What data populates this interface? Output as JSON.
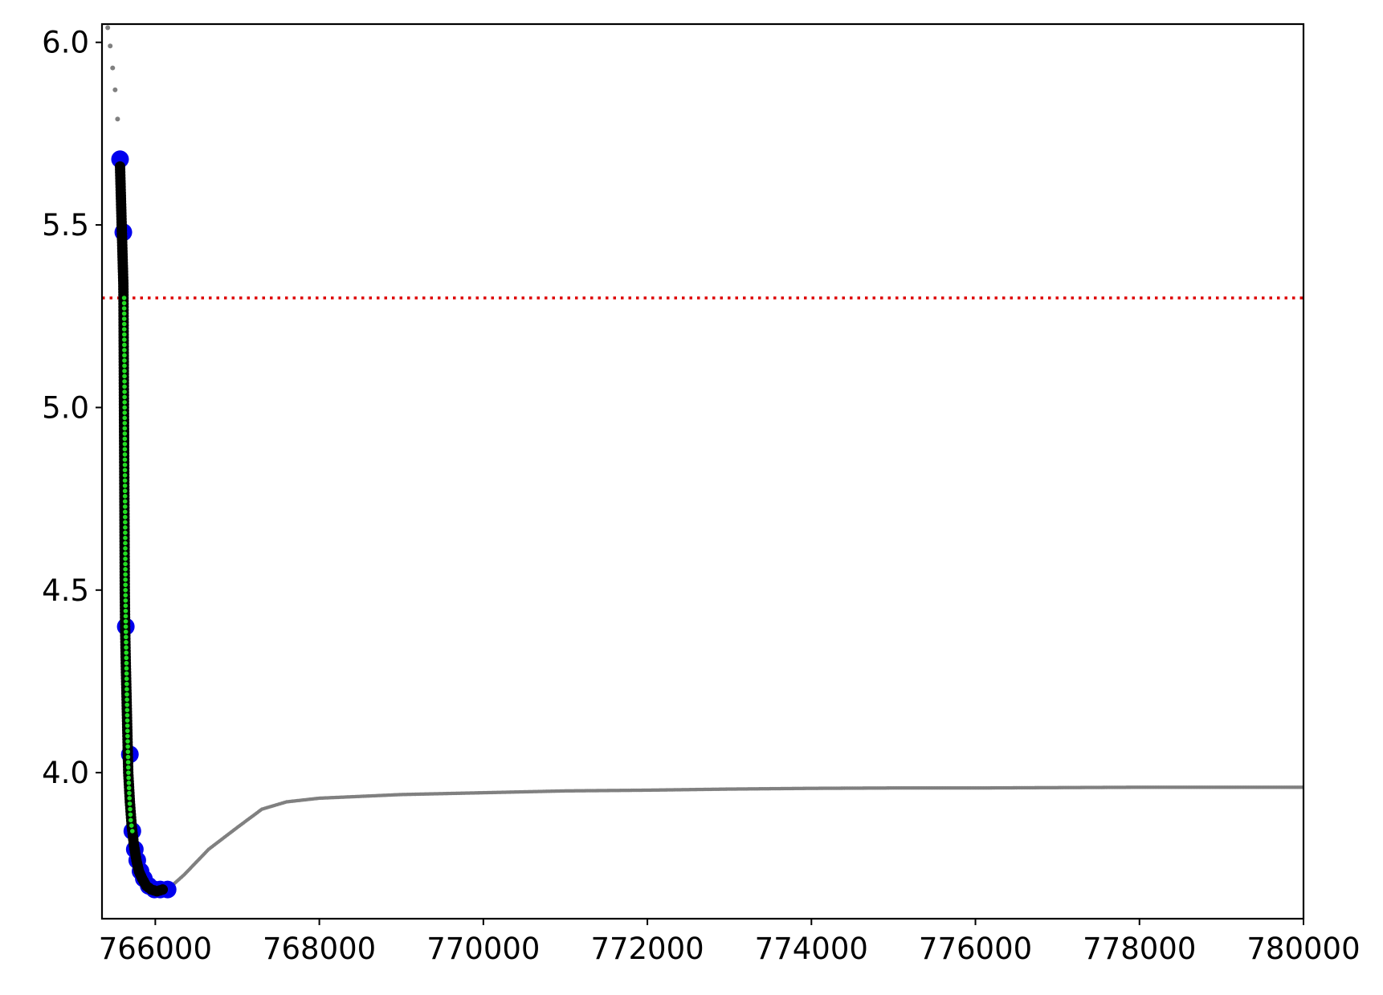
{
  "chart_data": {
    "type": "scatter",
    "title": "",
    "xlabel": "",
    "ylabel": "",
    "xlim": [
      765350,
      780000
    ],
    "ylim": [
      3.6,
      6.05
    ],
    "grid": false,
    "legend": "none",
    "x_ticks": [
      766000,
      768000,
      770000,
      772000,
      774000,
      776000,
      778000,
      780000
    ],
    "x_tick_labels": [
      "766000",
      "768000",
      "770000",
      "772000",
      "774000",
      "776000",
      "778000",
      "780000"
    ],
    "y_ticks": [
      4.0,
      4.5,
      5.0,
      5.5,
      6.0
    ],
    "y_tick_labels": [
      "4.0",
      "4.5",
      "5.0",
      "5.5",
      "6.0"
    ],
    "threshold": {
      "y": 5.3,
      "color": "#dd0000",
      "style": "dotted"
    },
    "series": [
      {
        "role": "background",
        "color": "#808080",
        "points": [
          [
            765420,
            6.04
          ],
          [
            765450,
            5.99
          ],
          [
            765480,
            5.93
          ],
          [
            765510,
            5.87
          ],
          [
            765540,
            5.79
          ],
          [
            765590,
            5.67
          ],
          [
            765600,
            5.5
          ],
          [
            765610,
            5.3
          ],
          [
            765620,
            5.0
          ],
          [
            765630,
            4.6
          ],
          [
            765640,
            4.3
          ],
          [
            765660,
            4.0
          ],
          [
            765690,
            3.85
          ],
          [
            765750,
            3.76
          ],
          [
            765850,
            3.7
          ],
          [
            766000,
            3.67
          ],
          [
            766150,
            3.68
          ],
          [
            766350,
            3.72
          ],
          [
            766650,
            3.79
          ],
          [
            767000,
            3.85
          ],
          [
            767300,
            3.9
          ],
          [
            767600,
            3.92
          ],
          [
            768000,
            3.93
          ],
          [
            768500,
            3.935
          ],
          [
            769000,
            3.94
          ],
          [
            770000,
            3.945
          ],
          [
            771000,
            3.95
          ],
          [
            772000,
            3.952
          ],
          [
            773000,
            3.955
          ],
          [
            774000,
            3.957
          ],
          [
            775000,
            3.958
          ],
          [
            776000,
            3.958
          ],
          [
            777000,
            3.959
          ],
          [
            778000,
            3.96
          ],
          [
            779000,
            3.96
          ],
          [
            780000,
            3.96
          ]
        ]
      },
      {
        "role": "key-points",
        "color": "#0000ee",
        "points": [
          [
            765570,
            5.68
          ],
          [
            765610,
            5.48
          ],
          [
            765640,
            4.4
          ],
          [
            765690,
            4.05
          ],
          [
            765720,
            3.84
          ],
          [
            765750,
            3.79
          ],
          [
            765780,
            3.76
          ],
          [
            765820,
            3.73
          ],
          [
            765860,
            3.71
          ],
          [
            765920,
            3.69
          ],
          [
            765990,
            3.68
          ],
          [
            766060,
            3.68
          ],
          [
            766150,
            3.68
          ]
        ]
      },
      {
        "role": "selected",
        "color": "#000000",
        "points": [
          [
            765570,
            5.66
          ],
          [
            765575,
            5.62
          ],
          [
            765580,
            5.58
          ],
          [
            765585,
            5.54
          ],
          [
            765590,
            5.5
          ],
          [
            765595,
            5.46
          ],
          [
            765600,
            5.42
          ],
          [
            765605,
            5.38
          ],
          [
            765610,
            5.34
          ],
          [
            765612,
            5.3
          ],
          [
            765614,
            5.2
          ],
          [
            765616,
            5.1
          ],
          [
            765618,
            5.0
          ],
          [
            765620,
            4.9
          ],
          [
            765622,
            4.8
          ],
          [
            765624,
            4.7
          ],
          [
            765626,
            4.6
          ],
          [
            765628,
            4.5
          ],
          [
            765632,
            4.4
          ],
          [
            765640,
            4.3
          ],
          [
            765650,
            4.2
          ],
          [
            765660,
            4.1
          ],
          [
            765670,
            4.0
          ],
          [
            765690,
            3.92
          ],
          [
            765710,
            3.86
          ],
          [
            765740,
            3.8
          ],
          [
            765770,
            3.76
          ],
          [
            765800,
            3.73
          ],
          [
            765840,
            3.71
          ],
          [
            765890,
            3.69
          ],
          [
            765950,
            3.68
          ],
          [
            766020,
            3.675
          ],
          [
            766090,
            3.68
          ]
        ]
      },
      {
        "role": "fit",
        "color": "#22dd22",
        "points": [
          [
            765620,
            5.3
          ],
          [
            765622,
            5.2
          ],
          [
            765624,
            5.1
          ],
          [
            765626,
            5.0
          ],
          [
            765628,
            4.9
          ],
          [
            765630,
            4.8
          ],
          [
            765632,
            4.7
          ],
          [
            765634,
            4.6
          ],
          [
            765636,
            4.5
          ],
          [
            765640,
            4.4
          ],
          [
            765648,
            4.3
          ],
          [
            765655,
            4.2
          ],
          [
            765662,
            4.1
          ],
          [
            765672,
            4.0
          ],
          [
            765685,
            3.93
          ],
          [
            765700,
            3.87
          ],
          [
            765720,
            3.84
          ]
        ]
      }
    ]
  }
}
